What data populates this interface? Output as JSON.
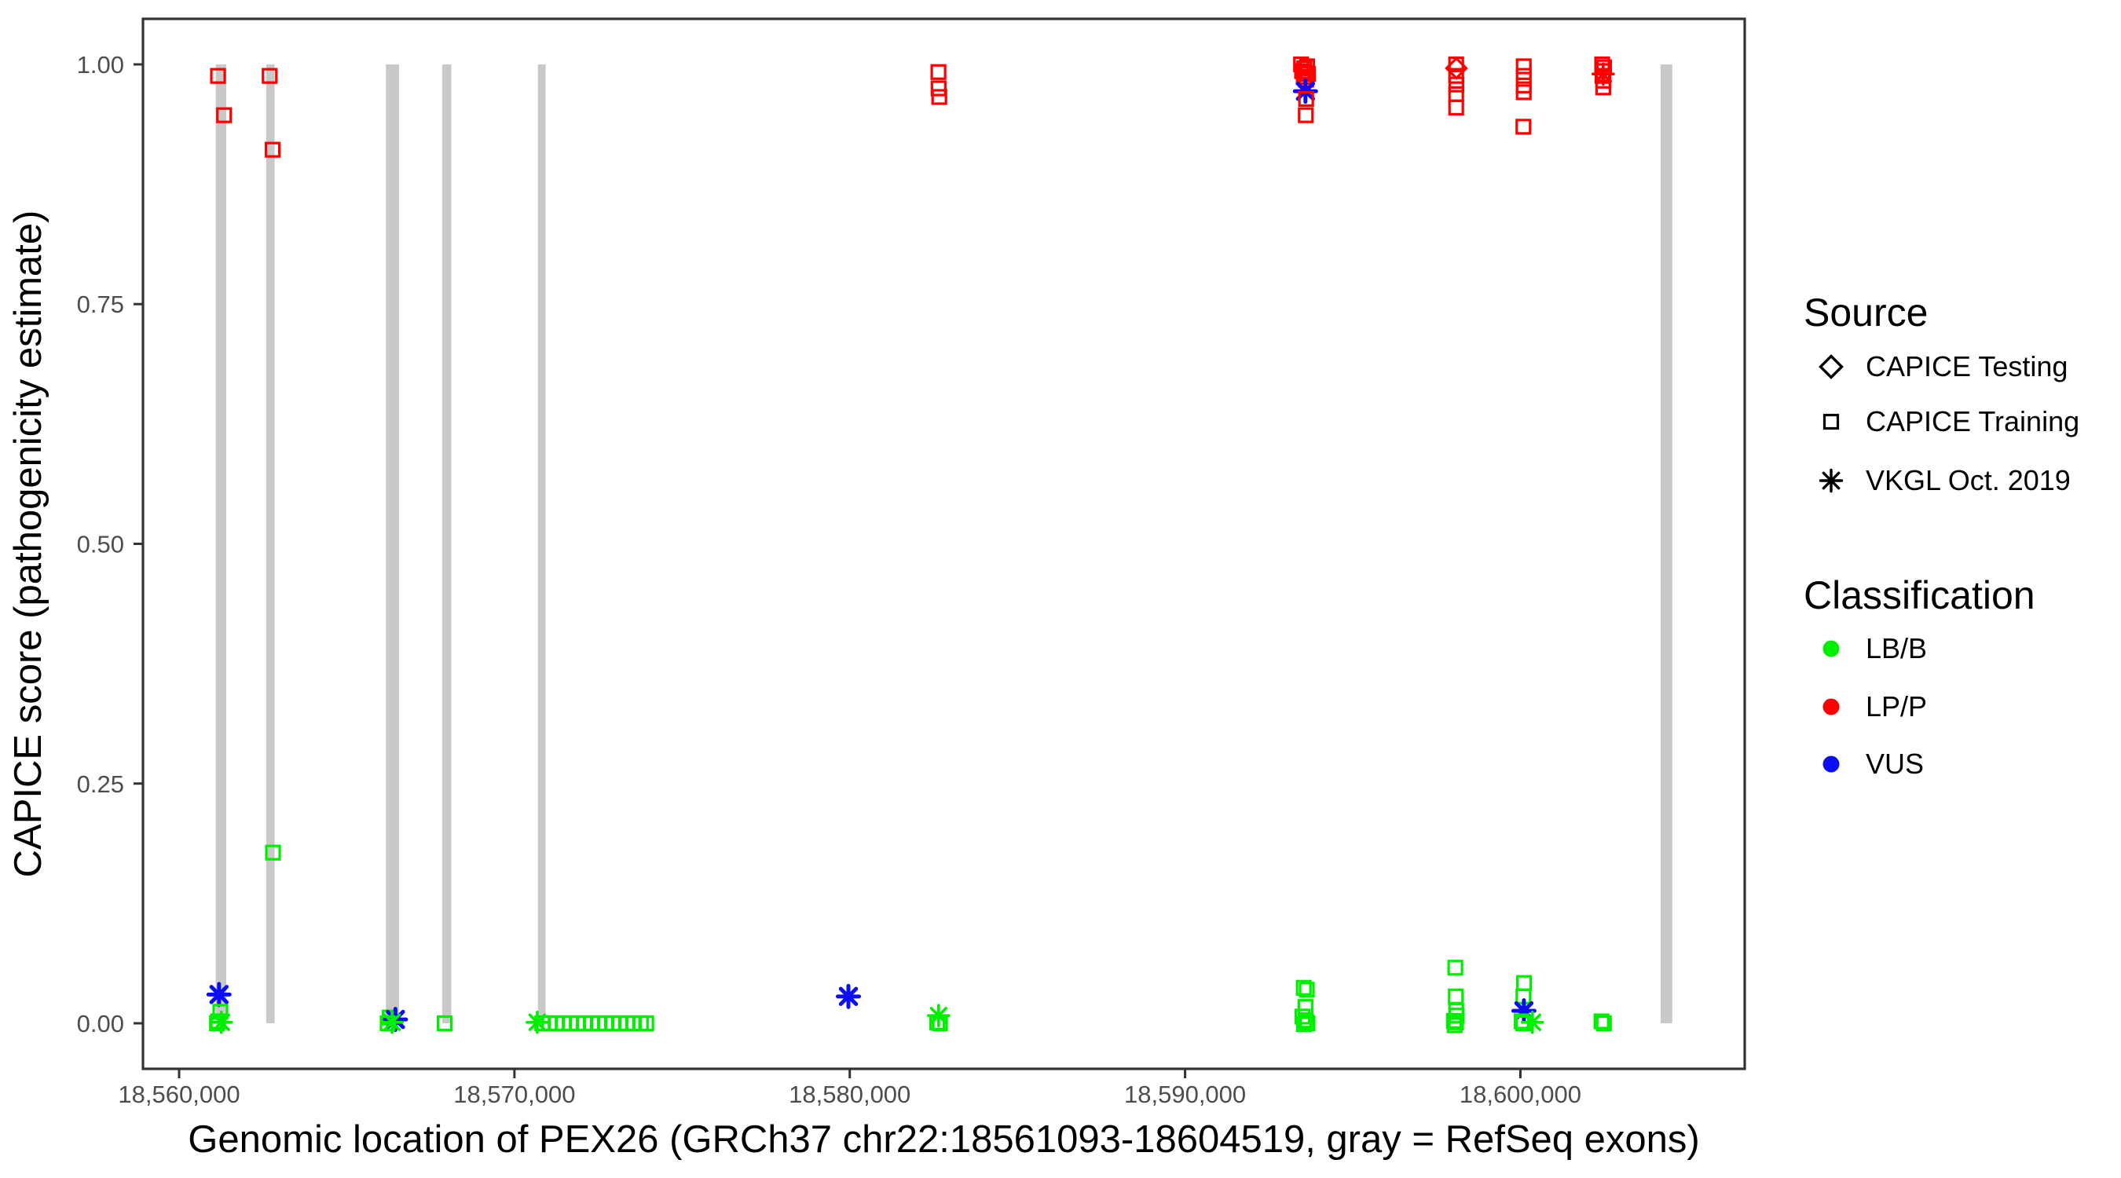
{
  "chart_data": {
    "type": "scatter",
    "title": "",
    "xlabel": "Genomic location of PEX26 (GRCh37 chr22:18561093-18604519, gray = RefSeq exons)",
    "ylabel": "CAPICE score (pathogenicity estimate)",
    "xlim": [
      18558922,
      18606690
    ],
    "ylim": [
      -0.0475,
      1.0475
    ],
    "grid": false,
    "xticks": [
      {
        "value": 18560000,
        "label": "18,560,000"
      },
      {
        "value": 18570000,
        "label": "18,570,000"
      },
      {
        "value": 18580000,
        "label": "18,580,000"
      },
      {
        "value": 18590000,
        "label": "18,590,000"
      },
      {
        "value": 18600000,
        "label": "18,600,000"
      }
    ],
    "yticks": [
      {
        "value": 1.0,
        "label": "1.00"
      },
      {
        "value": 0.75,
        "label": "0.75"
      },
      {
        "value": 0.5,
        "label": "0.50"
      },
      {
        "value": 0.25,
        "label": "0.25"
      },
      {
        "value": 0.0,
        "label": "0.00"
      }
    ],
    "exon_color": "#C9C9C9",
    "exons": [
      {
        "start": 18561091,
        "end": 18561405
      },
      {
        "start": 18562600,
        "end": 18562848
      },
      {
        "start": 18566167,
        "end": 18566558
      },
      {
        "start": 18567846,
        "end": 18568118
      },
      {
        "start": 18570700,
        "end": 18570930
      },
      {
        "start": 18604180,
        "end": 18604530
      }
    ],
    "colors": {
      "LB/B": "#00EE00",
      "LP/P": "#FF0000",
      "VUS": "#0D0DF2"
    },
    "shape_by_source": {
      "CAPICE Testing": "diamond",
      "CAPICE Training": "square",
      "VKGL Oct. 2019": "asterisk"
    },
    "points": [
      {
        "pos": 18561160,
        "score": 0.988,
        "source": "CAPICE Training",
        "class": "LP/P"
      },
      {
        "pos": 18561340,
        "score": 0.947,
        "source": "CAPICE Training",
        "class": "LP/P"
      },
      {
        "pos": 18561190,
        "score": 0.03,
        "source": "VKGL Oct. 2019",
        "class": "VUS"
      },
      {
        "pos": 18561230,
        "score": 0.012,
        "source": "CAPICE Training",
        "class": "LB/B"
      },
      {
        "pos": 18561160,
        "score": 0.002,
        "source": "CAPICE Training",
        "class": "LB/B"
      },
      {
        "pos": 18561260,
        "score": 0.001,
        "source": "VKGL Oct. 2019",
        "class": "LB/B"
      },
      {
        "pos": 18561130,
        "score": 0.0,
        "source": "CAPICE Training",
        "class": "LB/B"
      },
      {
        "pos": 18562700,
        "score": 0.988,
        "source": "CAPICE Training",
        "class": "LP/P"
      },
      {
        "pos": 18562790,
        "score": 0.911,
        "source": "CAPICE Training",
        "class": "LP/P"
      },
      {
        "pos": 18562800,
        "score": 0.178,
        "source": "CAPICE Training",
        "class": "LB/B"
      },
      {
        "pos": 18566280,
        "score": 0.006,
        "source": "CAPICE Training",
        "class": "LB/B"
      },
      {
        "pos": 18566450,
        "score": 0.004,
        "source": "VKGL Oct. 2019",
        "class": "VUS"
      },
      {
        "pos": 18566350,
        "score": 0.001,
        "source": "VKGL Oct. 2019",
        "class": "LB/B"
      },
      {
        "pos": 18566220,
        "score": 0.0,
        "source": "CAPICE Training",
        "class": "LB/B"
      },
      {
        "pos": 18567920,
        "score": 0.0,
        "source": "CAPICE Training",
        "class": "LB/B"
      },
      {
        "pos": 18570680,
        "score": 0.001,
        "source": "VKGL Oct. 2019",
        "class": "LB/B"
      },
      {
        "pos": 18570830,
        "score": 0.0,
        "source": "CAPICE Training",
        "class": "LB/B"
      },
      {
        "pos": 18571040,
        "score": 0.0,
        "source": "CAPICE Training",
        "class": "LB/B"
      },
      {
        "pos": 18571250,
        "score": 0.0,
        "source": "CAPICE Training",
        "class": "LB/B"
      },
      {
        "pos": 18571460,
        "score": 0.0,
        "source": "CAPICE Training",
        "class": "LB/B"
      },
      {
        "pos": 18571670,
        "score": 0.0,
        "source": "CAPICE Training",
        "class": "LB/B"
      },
      {
        "pos": 18571880,
        "score": 0.0,
        "source": "CAPICE Training",
        "class": "LB/B"
      },
      {
        "pos": 18572090,
        "score": 0.0,
        "source": "CAPICE Training",
        "class": "LB/B"
      },
      {
        "pos": 18572300,
        "score": 0.0,
        "source": "CAPICE Training",
        "class": "LB/B"
      },
      {
        "pos": 18572510,
        "score": 0.0,
        "source": "CAPICE Training",
        "class": "LB/B"
      },
      {
        "pos": 18572720,
        "score": 0.0,
        "source": "CAPICE Training",
        "class": "LB/B"
      },
      {
        "pos": 18572930,
        "score": 0.0,
        "source": "CAPICE Training",
        "class": "LB/B"
      },
      {
        "pos": 18573140,
        "score": 0.0,
        "source": "CAPICE Training",
        "class": "LB/B"
      },
      {
        "pos": 18573350,
        "score": 0.0,
        "source": "CAPICE Training",
        "class": "LB/B"
      },
      {
        "pos": 18573560,
        "score": 0.0,
        "source": "CAPICE Training",
        "class": "LB/B"
      },
      {
        "pos": 18573770,
        "score": 0.0,
        "source": "CAPICE Training",
        "class": "LB/B"
      },
      {
        "pos": 18573930,
        "score": 0.0,
        "source": "CAPICE Training",
        "class": "LB/B"
      },
      {
        "pos": 18579960,
        "score": 0.028,
        "source": "VKGL Oct. 2019",
        "class": "VUS"
      },
      {
        "pos": 18582645,
        "score": 0.992,
        "source": "CAPICE Training",
        "class": "LP/P"
      },
      {
        "pos": 18582650,
        "score": 0.975,
        "source": "CAPICE Training",
        "class": "LP/P"
      },
      {
        "pos": 18582670,
        "score": 0.966,
        "source": "CAPICE Training",
        "class": "LP/P"
      },
      {
        "pos": 18582650,
        "score": 0.008,
        "source": "VKGL Oct. 2019",
        "class": "LB/B"
      },
      {
        "pos": 18582610,
        "score": 0.001,
        "source": "CAPICE Training",
        "class": "LB/B"
      },
      {
        "pos": 18582690,
        "score": 0.0,
        "source": "CAPICE Training",
        "class": "LB/B"
      },
      {
        "pos": 18593460,
        "score": 1.0,
        "source": "CAPICE Training",
        "class": "LP/P"
      },
      {
        "pos": 18593640,
        "score": 0.998,
        "source": "CAPICE Training",
        "class": "LP/P"
      },
      {
        "pos": 18593490,
        "score": 0.993,
        "source": "CAPICE Training",
        "class": "LP/P"
      },
      {
        "pos": 18593665,
        "score": 0.99,
        "source": "CAPICE Training",
        "class": "LP/P"
      },
      {
        "pos": 18593555,
        "score": 0.996,
        "source": "CAPICE Training",
        "class": "LP/P"
      },
      {
        "pos": 18593580,
        "score": 0.991,
        "source": "CAPICE Training",
        "class": "LP/P"
      },
      {
        "pos": 18593540,
        "score": 0.987,
        "source": "CAPICE Training",
        "class": "LP/P"
      },
      {
        "pos": 18593610,
        "score": 0.984,
        "source": "CAPICE Training",
        "class": "LP/P"
      },
      {
        "pos": 18593590,
        "score": 0.972,
        "source": "VKGL Oct. 2019",
        "class": "VUS"
      },
      {
        "pos": 18593610,
        "score": 0.964,
        "source": "CAPICE Training",
        "class": "LP/P"
      },
      {
        "pos": 18593600,
        "score": 0.947,
        "source": "CAPICE Training",
        "class": "LP/P"
      },
      {
        "pos": 18593540,
        "score": 0.037,
        "source": "CAPICE Training",
        "class": "LB/B"
      },
      {
        "pos": 18593630,
        "score": 0.035,
        "source": "CAPICE Training",
        "class": "LB/B"
      },
      {
        "pos": 18593590,
        "score": 0.017,
        "source": "CAPICE Training",
        "class": "LB/B"
      },
      {
        "pos": 18593500,
        "score": 0.007,
        "source": "CAPICE Training",
        "class": "LB/B"
      },
      {
        "pos": 18593595,
        "score": 0.003,
        "source": "CAPICE Training",
        "class": "LB/B"
      },
      {
        "pos": 18593650,
        "score": 0.0,
        "source": "CAPICE Training",
        "class": "LB/B"
      },
      {
        "pos": 18593545,
        "score": -0.001,
        "source": "CAPICE Training",
        "class": "LB/B"
      },
      {
        "pos": 18593610,
        "score": 0.001,
        "source": "CAPICE Training",
        "class": "LB/B"
      },
      {
        "pos": 18598090,
        "score": 0.996,
        "source": "CAPICE Testing",
        "class": "LP/P"
      },
      {
        "pos": 18598085,
        "score": 1.0,
        "source": "CAPICE Training",
        "class": "LP/P"
      },
      {
        "pos": 18598085,
        "score": 0.988,
        "source": "CAPICE Training",
        "class": "LP/P"
      },
      {
        "pos": 18598090,
        "score": 0.979,
        "source": "CAPICE Training",
        "class": "LP/P"
      },
      {
        "pos": 18598085,
        "score": 0.969,
        "source": "CAPICE Training",
        "class": "LP/P"
      },
      {
        "pos": 18598085,
        "score": 0.955,
        "source": "CAPICE Training",
        "class": "LP/P"
      },
      {
        "pos": 18598060,
        "score": 0.058,
        "source": "CAPICE Training",
        "class": "LB/B"
      },
      {
        "pos": 18598075,
        "score": 0.028,
        "source": "CAPICE Training",
        "class": "LB/B"
      },
      {
        "pos": 18598085,
        "score": 0.013,
        "source": "CAPICE Training",
        "class": "LB/B"
      },
      {
        "pos": 18598100,
        "score": 0.008,
        "source": "CAPICE Training",
        "class": "LB/B"
      },
      {
        "pos": 18598020,
        "score": 0.0025,
        "source": "CAPICE Training",
        "class": "LB/B"
      },
      {
        "pos": 18598080,
        "score": 0.001,
        "source": "CAPICE Training",
        "class": "LB/B"
      },
      {
        "pos": 18598040,
        "score": -0.002,
        "source": "CAPICE Training",
        "class": "LB/B"
      },
      {
        "pos": 18600100,
        "score": 0.998,
        "source": "CAPICE Training",
        "class": "LP/P"
      },
      {
        "pos": 18600100,
        "score": 0.988,
        "source": "CAPICE Training",
        "class": "LP/P"
      },
      {
        "pos": 18600100,
        "score": 0.978,
        "source": "CAPICE Training",
        "class": "LP/P"
      },
      {
        "pos": 18600100,
        "score": 0.971,
        "source": "CAPICE Training",
        "class": "LP/P"
      },
      {
        "pos": 18600090,
        "score": 0.935,
        "source": "CAPICE Training",
        "class": "LP/P"
      },
      {
        "pos": 18600110,
        "score": 0.042,
        "source": "CAPICE Training",
        "class": "LB/B"
      },
      {
        "pos": 18600090,
        "score": 0.028,
        "source": "CAPICE Training",
        "class": "LB/B"
      },
      {
        "pos": 18600105,
        "score": 0.013,
        "source": "VKGL Oct. 2019",
        "class": "VUS"
      },
      {
        "pos": 18600040,
        "score": 0.002,
        "source": "CAPICE Training",
        "class": "LB/B"
      },
      {
        "pos": 18600085,
        "score": 0.0,
        "source": "CAPICE Training",
        "class": "LB/B"
      },
      {
        "pos": 18600360,
        "score": 0.001,
        "source": "VKGL Oct. 2019",
        "class": "LB/B"
      },
      {
        "pos": 18602470,
        "score": 0.99,
        "source": "VKGL Oct. 2019",
        "class": "LP/P"
      },
      {
        "pos": 18602440,
        "score": 1.0,
        "source": "CAPICE Training",
        "class": "LP/P"
      },
      {
        "pos": 18602495,
        "score": 0.997,
        "source": "CAPICE Training",
        "class": "LP/P"
      },
      {
        "pos": 18602460,
        "score": 0.993,
        "source": "CAPICE Training",
        "class": "LP/P"
      },
      {
        "pos": 18602450,
        "score": 0.988,
        "source": "CAPICE Training",
        "class": "LP/P"
      },
      {
        "pos": 18602475,
        "score": 0.983,
        "source": "CAPICE Training",
        "class": "LP/P"
      },
      {
        "pos": 18602470,
        "score": 0.976,
        "source": "CAPICE Training",
        "class": "LP/P"
      },
      {
        "pos": 18602420,
        "score": 0.002,
        "source": "CAPICE Training",
        "class": "LB/B"
      },
      {
        "pos": 18602490,
        "score": 0.0,
        "source": "CAPICE Training",
        "class": "LB/B"
      }
    ]
  },
  "legend": {
    "source": {
      "title": "Source",
      "items": [
        {
          "label": "CAPICE Testing",
          "shape": "diamond"
        },
        {
          "label": "CAPICE Training",
          "shape": "square"
        },
        {
          "label": "VKGL Oct. 2019",
          "shape": "asterisk"
        }
      ]
    },
    "classification": {
      "title": "Classification",
      "items": [
        {
          "label": "LB/B",
          "color": "#00EE00"
        },
        {
          "label": "LP/P",
          "color": "#FF0000"
        },
        {
          "label": "VUS",
          "color": "#0D0DF2"
        }
      ]
    }
  }
}
